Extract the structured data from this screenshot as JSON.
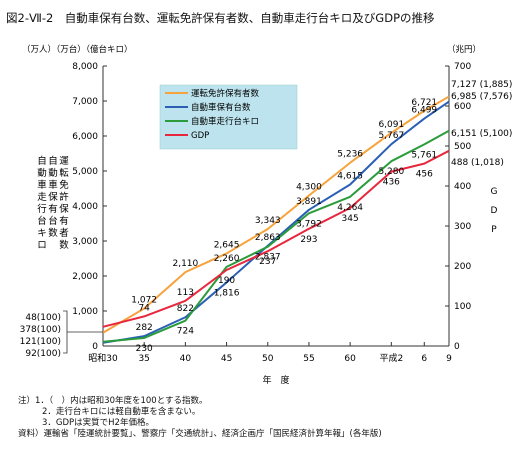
{
  "title": "図2-Ⅶ-2　自動車保有台数、運転免許保有者数、自動車走行台キロ及びGDPの推移",
  "chart_data": {
    "type": "line",
    "left_unit": "（万人）（万台）（億台キロ）",
    "right_unit": "（兆円）",
    "left_axis_label": [
      "運転免許保有者数",
      "自動車保有台数",
      "自動車走行台キロ"
    ],
    "right_axis_label": "GDP",
    "xlabel": "年　度",
    "x_ticks": [
      "昭和30",
      "35",
      "40",
      "45",
      "50",
      "55",
      "60",
      "平成2",
      "6",
      "9"
    ],
    "left_ticks": [
      "0",
      "1,000",
      "2,000",
      "3,000",
      "4,000",
      "5,000",
      "6,000",
      "7,000",
      "8,000"
    ],
    "right_ticks": [
      "0",
      "100",
      "200",
      "300",
      "400",
      "500",
      "600",
      "700"
    ],
    "ylim_left": [
      0,
      8000
    ],
    "ylim_right": [
      0,
      700
    ],
    "x": [
      1955,
      1960,
      1965,
      1970,
      1975,
      1980,
      1985,
      1990,
      1994,
      1997
    ],
    "series": [
      {
        "name": "運転免許保有者数",
        "color": "#f7a23b",
        "axis": "left",
        "values": [
          378,
          1072,
          2110,
          2645,
          3343,
          4300,
          5236,
          6091,
          6721,
          7127
        ]
      },
      {
        "name": "自動車保有台数",
        "color": "#2b5fb5",
        "axis": "left",
        "values": [
          92,
          282,
          822,
          1816,
          2863,
          3891,
          4615,
          5767,
          6499,
          6985
        ]
      },
      {
        "name": "自動車走行台キロ",
        "color": "#2a9c3c",
        "axis": "left",
        "values": [
          121,
          230,
          724,
          2260,
          2837,
          3792,
          4264,
          5280,
          5761,
          6151
        ]
      },
      {
        "name": "GDP",
        "color": "#e8273d",
        "axis": "right",
        "values": [
          48,
          74,
          113,
          190,
          237,
          293,
          345,
          436,
          456,
          488
        ]
      }
    ],
    "point_labels": [
      {
        "text": "1,072",
        "x": 1960,
        "v": 1072,
        "axis": "left",
        "pos": "above"
      },
      {
        "text": "2,110",
        "x": 1965,
        "v": 2110,
        "axis": "left",
        "pos": "above"
      },
      {
        "text": "2,645",
        "x": 1970,
        "v": 2645,
        "axis": "left",
        "pos": "above"
      },
      {
        "text": "3,343",
        "x": 1975,
        "v": 3343,
        "axis": "left",
        "pos": "above"
      },
      {
        "text": "4,300",
        "x": 1980,
        "v": 4300,
        "axis": "left",
        "pos": "above"
      },
      {
        "text": "5,236",
        "x": 1985,
        "v": 5236,
        "axis": "left",
        "pos": "above"
      },
      {
        "text": "6,091",
        "x": 1990,
        "v": 6091,
        "axis": "left",
        "pos": "above"
      },
      {
        "text": "6,721",
        "x": 1994,
        "v": 6721,
        "axis": "left",
        "pos": "above"
      },
      {
        "text": "282",
        "x": 1960,
        "v": 282,
        "axis": "left",
        "pos": "above"
      },
      {
        "text": "822",
        "x": 1965,
        "v": 822,
        "axis": "left",
        "pos": "above"
      },
      {
        "text": "1,816",
        "x": 1970,
        "v": 1816,
        "axis": "left",
        "pos": "below"
      },
      {
        "text": "2,863",
        "x": 1975,
        "v": 2863,
        "axis": "left",
        "pos": "above"
      },
      {
        "text": "3,891",
        "x": 1980,
        "v": 3891,
        "axis": "left",
        "pos": "above"
      },
      {
        "text": "4,615",
        "x": 1985,
        "v": 4615,
        "axis": "left",
        "pos": "above"
      },
      {
        "text": "5,767",
        "x": 1990,
        "v": 5767,
        "axis": "left",
        "pos": "above"
      },
      {
        "text": "6,499",
        "x": 1994,
        "v": 6499,
        "axis": "left",
        "pos": "above"
      },
      {
        "text": "230",
        "x": 1960,
        "v": 230,
        "axis": "left",
        "pos": "below"
      },
      {
        "text": "724",
        "x": 1965,
        "v": 724,
        "axis": "left",
        "pos": "below"
      },
      {
        "text": "2,260",
        "x": 1970,
        "v": 2260,
        "axis": "left",
        "pos": "above"
      },
      {
        "text": "2,837",
        "x": 1975,
        "v": 2837,
        "axis": "left",
        "pos": "below"
      },
      {
        "text": "3,792",
        "x": 1980,
        "v": 3792,
        "axis": "left",
        "pos": "below"
      },
      {
        "text": "4,264",
        "x": 1985,
        "v": 4264,
        "axis": "left",
        "pos": "below"
      },
      {
        "text": "5,280",
        "x": 1990,
        "v": 5280,
        "axis": "left",
        "pos": "below"
      },
      {
        "text": "5,761",
        "x": 1994,
        "v": 5761,
        "axis": "left",
        "pos": "below"
      },
      {
        "text": "74",
        "x": 1960,
        "v": 74,
        "axis": "right",
        "pos": "above"
      },
      {
        "text": "113",
        "x": 1965,
        "v": 113,
        "axis": "right",
        "pos": "above"
      },
      {
        "text": "190",
        "x": 1970,
        "v": 190,
        "axis": "right",
        "pos": "below"
      },
      {
        "text": "237",
        "x": 1975,
        "v": 237,
        "axis": "right",
        "pos": "below"
      },
      {
        "text": "293",
        "x": 1980,
        "v": 293,
        "axis": "right",
        "pos": "below"
      },
      {
        "text": "345",
        "x": 1985,
        "v": 345,
        "axis": "right",
        "pos": "below"
      },
      {
        "text": "436",
        "x": 1990,
        "v": 436,
        "axis": "right",
        "pos": "below"
      },
      {
        "text": "456",
        "x": 1994,
        "v": 456,
        "axis": "right",
        "pos": "below"
      }
    ],
    "start_labels": [
      "48(100)",
      "378(100)",
      "121(100)",
      "92(100)"
    ],
    "end_labels": [
      {
        "text": "7,127 (1,885)",
        "v": 7127,
        "axis": "left"
      },
      {
        "text": "6,985 (7,576)",
        "v": 6985,
        "axis": "left"
      },
      {
        "text": "6,151 (5,100)",
        "v": 6151,
        "axis": "left"
      },
      {
        "text": "488 (1,018)",
        "v": 488,
        "axis": "right"
      }
    ],
    "legend_position": "top-left inside plot",
    "grid": false
  },
  "notes": [
    "注）1．（　）内は昭和30年度を100とする指数。",
    "2．走行台キロには軽自動車を含まない。",
    "3．GDPは実質でH2年価格。",
    "資料）運輸省「陸運統計要覧」、警察庁「交通統計」、経済企画庁「国民経済計算年報」(各年版)"
  ]
}
